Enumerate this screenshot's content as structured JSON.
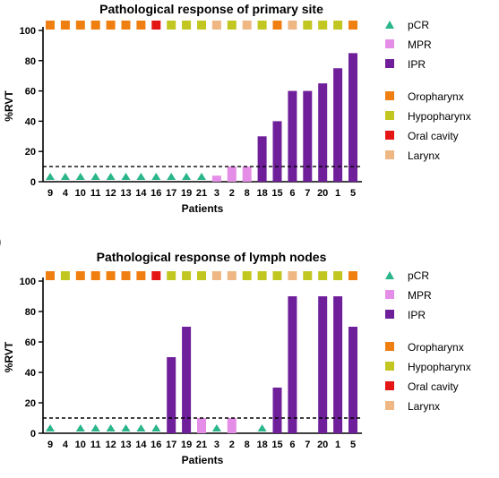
{
  "colors": {
    "pCR": "#2ab58a",
    "MPR": "#e58ee8",
    "IPR": "#6f1f9a",
    "Oropharynx": "#f07f12",
    "Hypopharynx": "#c2c621",
    "Oral cavity": "#e41515",
    "Larynx": "#efb783"
  },
  "legend": {
    "response": [
      "pCR",
      "MPR",
      "IPR"
    ],
    "site": [
      "Oropharynx",
      "Hypopharynx",
      "Oral cavity",
      "Larynx"
    ]
  },
  "chart_data": [
    {
      "type": "bar",
      "title": "Pathological response of primary site",
      "xlabel": "Patients",
      "ylabel": "%RVT",
      "ylim": [
        0,
        100
      ],
      "yticks": [
        0,
        20,
        40,
        60,
        80,
        100
      ],
      "threshold": 10,
      "categories": [
        "9",
        "4",
        "10",
        "11",
        "12",
        "13",
        "14",
        "16",
        "17",
        "19",
        "21",
        "3",
        "2",
        "8",
        "18",
        "15",
        "6",
        "7",
        "20",
        "1",
        "5"
      ],
      "values": [
        5,
        5,
        5,
        5,
        5,
        5,
        5,
        5,
        5,
        5,
        5,
        4,
        10,
        10,
        30,
        40,
        60,
        60,
        65,
        75,
        85
      ],
      "response": [
        "pCR",
        "pCR",
        "pCR",
        "pCR",
        "pCR",
        "pCR",
        "pCR",
        "pCR",
        "pCR",
        "pCR",
        "pCR",
        "MPR",
        "MPR",
        "MPR",
        "IPR",
        "IPR",
        "IPR",
        "IPR",
        "IPR",
        "IPR",
        "IPR"
      ],
      "site": [
        "Oropharynx",
        "Oropharynx",
        "Oropharynx",
        "Oropharynx",
        "Oropharynx",
        "Oropharynx",
        "Oropharynx",
        "Oral cavity",
        "Hypopharynx",
        "Hypopharynx",
        "Hypopharynx",
        "Larynx",
        "Hypopharynx",
        "Larynx",
        "Hypopharynx",
        "Oropharynx",
        "Larynx",
        "Hypopharynx",
        "Hypopharynx",
        "Hypopharynx",
        "Oropharynx"
      ]
    },
    {
      "type": "bar",
      "title": "Pathological response of lymph nodes",
      "xlabel": "Patients",
      "ylabel": "%RVT",
      "ylim": [
        0,
        100
      ],
      "yticks": [
        0,
        20,
        40,
        60,
        80,
        100
      ],
      "threshold": 10,
      "categories": [
        "9",
        "4",
        "10",
        "11",
        "12",
        "13",
        "14",
        "16",
        "17",
        "19",
        "21",
        "3",
        "2",
        "8",
        "18",
        "15",
        "6",
        "7",
        "20",
        "1",
        "5"
      ],
      "values": [
        5,
        0,
        5,
        5,
        5,
        5,
        5,
        5,
        50,
        70,
        10,
        5,
        10,
        0,
        5,
        30,
        90,
        0,
        90,
        90,
        70
      ],
      "response": [
        "pCR",
        "",
        "pCR",
        "pCR",
        "pCR",
        "pCR",
        "pCR",
        "pCR",
        "IPR",
        "IPR",
        "MPR",
        "pCR",
        "MPR",
        "",
        "pCR",
        "IPR",
        "IPR",
        "",
        "IPR",
        "IPR",
        "IPR"
      ],
      "site": [
        "Oropharynx",
        "Hypopharynx",
        "Oropharynx",
        "Oropharynx",
        "Oropharynx",
        "Oropharynx",
        "Oropharynx",
        "Oral cavity",
        "Hypopharynx",
        "Hypopharynx",
        "Hypopharynx",
        "Larynx",
        "Larynx",
        "Hypopharynx",
        "Hypopharynx",
        "Hypopharynx",
        "Larynx",
        "Hypopharynx",
        "Hypopharynx",
        "Hypopharynx",
        "Oropharynx"
      ]
    }
  ]
}
